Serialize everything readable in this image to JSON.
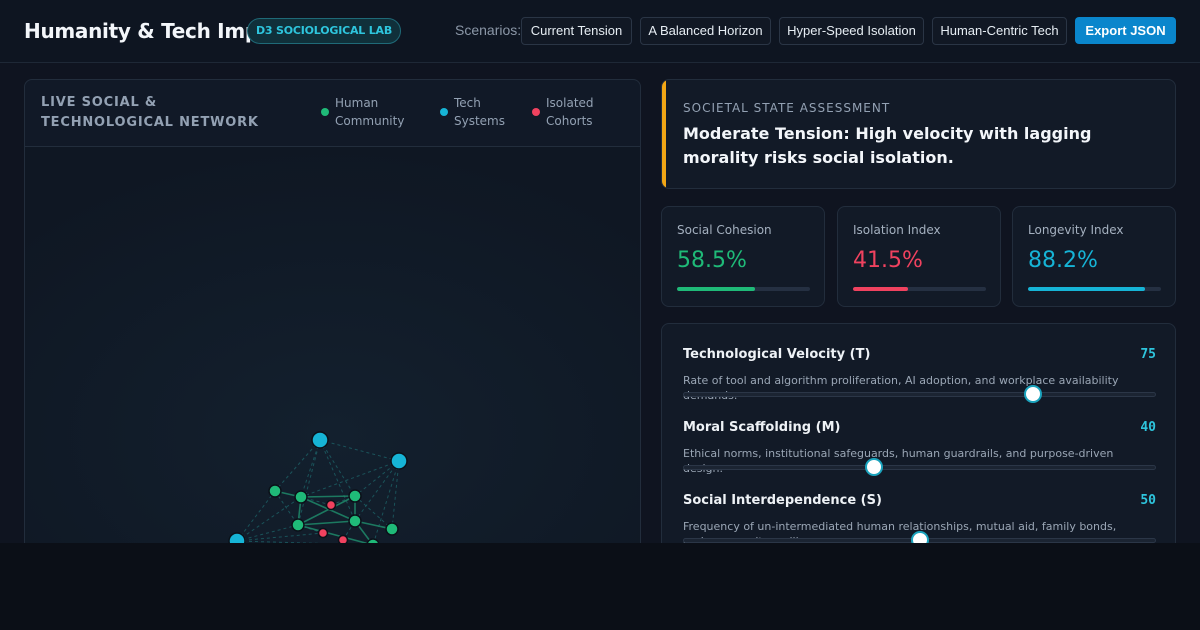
{
  "header": {
    "title": "Humanity & Tech Impact",
    "badge": "D3 SOCIOLOGICAL LAB",
    "scenarios_label": "Scenarios:",
    "scenarios": [
      {
        "label": "Current Tension",
        "active": true
      },
      {
        "label": "A Balanced Horizon",
        "active": false
      },
      {
        "label": "Hyper-Speed Isolation",
        "active": false
      },
      {
        "label": "Human-Centric Tech",
        "active": false
      }
    ],
    "export_label": "Export JSON"
  },
  "network": {
    "title": "LIVE SOCIAL & TECHNOLOGICAL NETWORK",
    "legend": [
      {
        "label": "Human Community",
        "color": "#1fba78"
      },
      {
        "label": "Tech Systems",
        "color": "#16b4d6"
      },
      {
        "label": "Isolated Cohorts",
        "color": "#f0425f"
      }
    ]
  },
  "assessment": {
    "label": "SOCIETAL STATE ASSESSMENT",
    "text": "Moderate Tension: High velocity with lagging morality risks social isolation.",
    "accent": "#f2a615"
  },
  "metrics": [
    {
      "label": "Social Cohesion",
      "value": "58.5%",
      "fraction": 0.585,
      "color": "#1fba78"
    },
    {
      "label": "Isolation Index",
      "value": "41.5%",
      "fraction": 0.415,
      "color": "#f0425f"
    },
    {
      "label": "Longevity Index",
      "value": "88.2%",
      "fraction": 0.882,
      "color": "#16b4d6"
    }
  ],
  "sliders": [
    {
      "name": "Technological Velocity (T)",
      "value": "75",
      "level": 75,
      "desc": "Rate of tool and algorithm proliferation, AI adoption, and workplace availability demands."
    },
    {
      "name": "Moral Scaffolding (M)",
      "value": "40",
      "level": 40,
      "desc": "Ethical norms, institutional safeguards, human guardrails, and purpose-driven design."
    },
    {
      "name": "Social Interdependence (S)",
      "value": "50",
      "level": 50,
      "desc": "Frequency of un-intermediated human relationships, mutual aid, family bonds, and community resilience."
    }
  ]
}
